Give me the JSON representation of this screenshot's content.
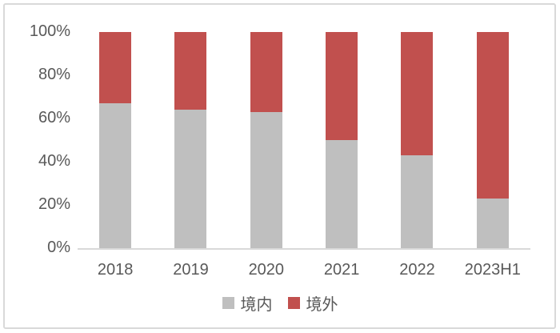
{
  "chart_data": {
    "type": "bar",
    "subtype": "stacked-100-percent",
    "title": "",
    "xlabel": "",
    "ylabel": "",
    "categories": [
      "2018",
      "2019",
      "2020",
      "2021",
      "2022",
      "2023H1"
    ],
    "series": [
      {
        "name": "境内",
        "color": "#bfbfbf",
        "values": [
          67,
          64,
          63,
          50,
          43,
          23
        ]
      },
      {
        "name": "境外",
        "color": "#c1504e",
        "values": [
          33,
          36,
          37,
          50,
          57,
          77
        ]
      }
    ],
    "y_axis": {
      "min": 0,
      "max": 100,
      "tick_labels": [
        "100%",
        "80%",
        "60%",
        "40%",
        "20%",
        "0%"
      ],
      "tick_values": [
        100,
        80,
        60,
        40,
        20,
        0
      ]
    },
    "legend": {
      "position": "bottom",
      "entries": [
        {
          "label": "境内",
          "color": "#bfbfbf"
        },
        {
          "label": "境外",
          "color": "#c1504e"
        }
      ]
    },
    "grid": false
  },
  "colors": {
    "background": "#ffffff",
    "frame_border": "#d9d9d9",
    "axis_line": "#d9d9d9",
    "text": "#595959",
    "series_domestic": "#bfbfbf",
    "series_overseas": "#c1504e"
  }
}
